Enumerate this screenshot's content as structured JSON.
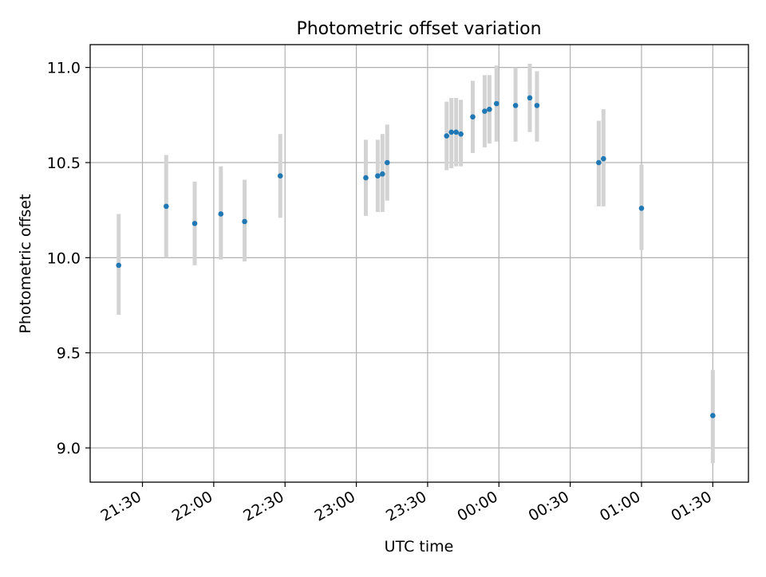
{
  "chart_data": {
    "type": "scatter",
    "title": "Photometric offset variation",
    "xlabel": "UTC time",
    "ylabel": "Photometric offset",
    "x_range": [
      "21:08",
      "01:45"
    ],
    "y_range": [
      8.82,
      11.12
    ],
    "y_ticks": [
      9.0,
      9.5,
      10.0,
      10.5,
      11.0
    ],
    "y_tick_labels": [
      "9.0",
      "9.5",
      "10.0",
      "10.5",
      "11.0"
    ],
    "x_ticks": [
      "21:30",
      "22:00",
      "22:30",
      "23:00",
      "23:30",
      "00:00",
      "00:30",
      "01:00",
      "01:30"
    ],
    "x_tick_labels": [
      "21:30",
      "22:00",
      "22:30",
      "23:00",
      "23:30",
      "00:00",
      "00:30",
      "01:00",
      "01:30"
    ],
    "grid": true,
    "marker_color": "#1f77b4",
    "errorbar_color": "#d3d3d3",
    "points": [
      {
        "t": "21:20",
        "y": 9.96,
        "lo": 9.7,
        "hi": 10.23
      },
      {
        "t": "21:40",
        "y": 10.27,
        "lo": 10.0,
        "hi": 10.54
      },
      {
        "t": "21:52",
        "y": 10.18,
        "lo": 9.96,
        "hi": 10.4
      },
      {
        "t": "22:03",
        "y": 10.23,
        "lo": 9.99,
        "hi": 10.48
      },
      {
        "t": "22:13",
        "y": 10.19,
        "lo": 9.98,
        "hi": 10.41
      },
      {
        "t": "22:28",
        "y": 10.43,
        "lo": 10.21,
        "hi": 10.65
      },
      {
        "t": "23:04",
        "y": 10.42,
        "lo": 10.22,
        "hi": 10.62
      },
      {
        "t": "23:09",
        "y": 10.43,
        "lo": 10.24,
        "hi": 10.62
      },
      {
        "t": "23:11",
        "y": 10.44,
        "lo": 10.24,
        "hi": 10.65
      },
      {
        "t": "23:13",
        "y": 10.5,
        "lo": 10.3,
        "hi": 10.7
      },
      {
        "t": "23:38",
        "y": 10.64,
        "lo": 10.46,
        "hi": 10.82
      },
      {
        "t": "23:40",
        "y": 10.66,
        "lo": 10.47,
        "hi": 10.84
      },
      {
        "t": "23:42",
        "y": 10.66,
        "lo": 10.48,
        "hi": 10.84
      },
      {
        "t": "23:44",
        "y": 10.65,
        "lo": 10.48,
        "hi": 10.83
      },
      {
        "t": "23:49",
        "y": 10.74,
        "lo": 10.55,
        "hi": 10.93
      },
      {
        "t": "23:54",
        "y": 10.77,
        "lo": 10.58,
        "hi": 10.96
      },
      {
        "t": "23:56",
        "y": 10.78,
        "lo": 10.6,
        "hi": 10.96
      },
      {
        "t": "23:59",
        "y": 10.81,
        "lo": 10.61,
        "hi": 11.01
      },
      {
        "t": "00:07",
        "y": 10.8,
        "lo": 10.61,
        "hi": 11.0
      },
      {
        "t": "00:13",
        "y": 10.84,
        "lo": 10.66,
        "hi": 11.02
      },
      {
        "t": "00:16",
        "y": 10.8,
        "lo": 10.61,
        "hi": 10.98
      },
      {
        "t": "00:42",
        "y": 10.5,
        "lo": 10.27,
        "hi": 10.72
      },
      {
        "t": "00:44",
        "y": 10.52,
        "lo": 10.27,
        "hi": 10.78
      },
      {
        "t": "01:00",
        "y": 10.26,
        "lo": 10.04,
        "hi": 10.49
      },
      {
        "t": "01:30",
        "y": 9.17,
        "lo": 8.92,
        "hi": 9.41
      }
    ]
  }
}
